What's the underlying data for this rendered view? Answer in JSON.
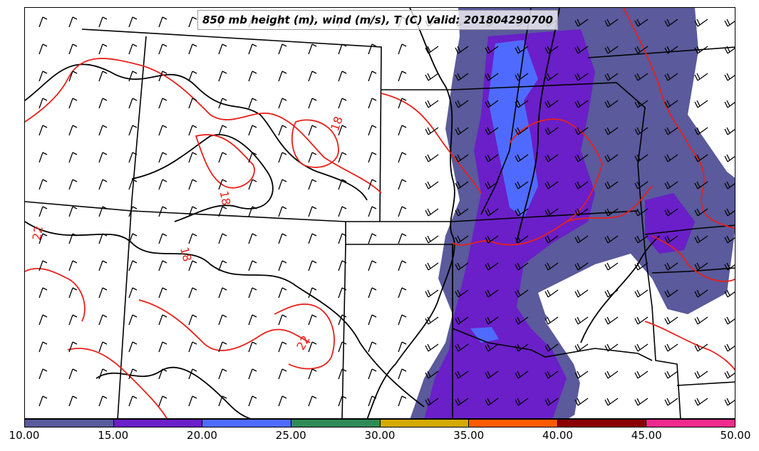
{
  "title": "850 mb height (m), wind (m/s), T (C) Valid: 201804290700",
  "colorbar": {
    "ticks": [
      "10.00",
      "15.00",
      "20.00",
      "25.00",
      "30.00",
      "35.00",
      "40.00",
      "45.00",
      "50.00"
    ],
    "colors": [
      "#5a5a9c",
      "#6a1fc8",
      "#4f6bff",
      "#2e8b57",
      "#d4aa00",
      "#ff5a00",
      "#8b0000",
      "#ee2a8c"
    ]
  },
  "temperature_labels": [
    "18",
    "18",
    "18",
    "22",
    "22"
  ],
  "colors": {
    "temperature_contour": "#e8201a",
    "height_contour": "#000000",
    "wind_barb": "#000000",
    "state_border": "#000000"
  }
}
